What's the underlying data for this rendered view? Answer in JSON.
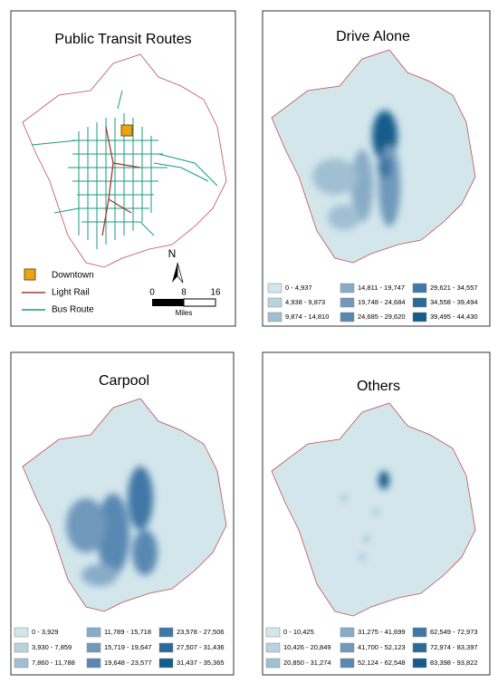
{
  "panels": [
    {
      "title": "Public Transit Routes",
      "legend": [
        "Downtown",
        "Light Rail",
        "Bus Route"
      ],
      "north": "N",
      "scale": {
        "ticks": [
          "0",
          "8",
          "16"
        ],
        "unit": "Miles"
      }
    },
    {
      "title": "Drive Alone",
      "classes": [
        "0 - 4,937",
        "4,938 - 9,873",
        "9,874 - 14,810",
        "14,811 - 19,747",
        "19,748 - 24,684",
        "24,685 - 29,620",
        "29,621 - 34,557",
        "34,558 - 39,494",
        "39,495 - 44,430"
      ]
    },
    {
      "title": "Carpool",
      "classes": [
        "0 - 3,929",
        "3,930 - 7,859",
        "7,860 - 11,788",
        "11,789 - 15,718",
        "15,719 - 19,647",
        "19,648 - 23,577",
        "23,578 - 27,506",
        "27,507 - 31,436",
        "31,437 - 35,365"
      ]
    },
    {
      "title": "Others",
      "classes": [
        "0 - 10,425",
        "10,426 - 20,849",
        "20,850 - 31,274",
        "31,275 - 41,699",
        "41,700 - 52,123",
        "52,124 - 62,548",
        "62,549 - 72,973",
        "72,974 - 83,397",
        "83,398 - 93,822"
      ]
    }
  ],
  "class_colors": [
    "#d3e6ec",
    "#b9d2de",
    "#a0bfd2",
    "#88acc7",
    "#7099bc",
    "#5888b2",
    "#3f77a6",
    "#2a6a99",
    "#145c8c"
  ]
}
